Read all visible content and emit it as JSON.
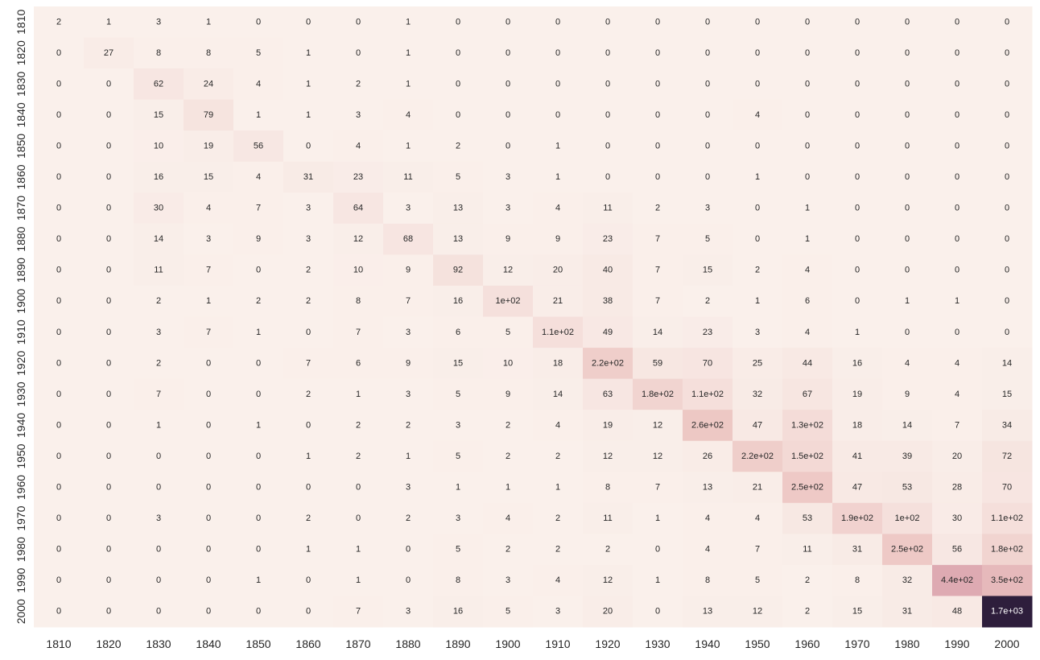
{
  "chart_data": {
    "type": "heatmap",
    "title": "",
    "xlabel": "",
    "ylabel": "",
    "x_categories": [
      "1810",
      "1820",
      "1830",
      "1840",
      "1850",
      "1860",
      "1870",
      "1880",
      "1890",
      "1900",
      "1910",
      "1920",
      "1930",
      "1940",
      "1950",
      "1960",
      "1970",
      "1980",
      "1990",
      "2000"
    ],
    "y_categories": [
      "1810",
      "1820",
      "1830",
      "1840",
      "1850",
      "1860",
      "1870",
      "1880",
      "1890",
      "1900",
      "1910",
      "1920",
      "1930",
      "1940",
      "1950",
      "1960",
      "1970",
      "1980",
      "1990",
      "2000"
    ],
    "values": [
      [
        2,
        1,
        3,
        1,
        0,
        0,
        0,
        1,
        0,
        0,
        0,
        0,
        0,
        0,
        0,
        0,
        0,
        0,
        0,
        0
      ],
      [
        0,
        27,
        8,
        8,
        5,
        1,
        0,
        1,
        0,
        0,
        0,
        0,
        0,
        0,
        0,
        0,
        0,
        0,
        0,
        0
      ],
      [
        0,
        0,
        62,
        24,
        4,
        1,
        2,
        1,
        0,
        0,
        0,
        0,
        0,
        0,
        0,
        0,
        0,
        0,
        0,
        0
      ],
      [
        0,
        0,
        15,
        79,
        1,
        1,
        3,
        4,
        0,
        0,
        0,
        0,
        0,
        0,
        4,
        0,
        0,
        0,
        0,
        0
      ],
      [
        0,
        0,
        10,
        19,
        56,
        0,
        4,
        1,
        2,
        0,
        1,
        0,
        0,
        0,
        0,
        0,
        0,
        0,
        0,
        0
      ],
      [
        0,
        0,
        16,
        15,
        4,
        31,
        23,
        11,
        5,
        3,
        1,
        0,
        0,
        0,
        1,
        0,
        0,
        0,
        0,
        0
      ],
      [
        0,
        0,
        30,
        4,
        7,
        3,
        64,
        3,
        13,
        3,
        4,
        11,
        2,
        3,
        0,
        1,
        0,
        0,
        0,
        0
      ],
      [
        0,
        0,
        14,
        3,
        9,
        3,
        12,
        68,
        13,
        9,
        9,
        23,
        7,
        5,
        0,
        1,
        0,
        0,
        0,
        0
      ],
      [
        0,
        0,
        11,
        7,
        0,
        2,
        10,
        9,
        92,
        12,
        20,
        40,
        7,
        15,
        2,
        4,
        0,
        0,
        0,
        0
      ],
      [
        0,
        0,
        2,
        1,
        2,
        2,
        8,
        7,
        16,
        100,
        21,
        38,
        7,
        2,
        1,
        6,
        0,
        1,
        1,
        0
      ],
      [
        0,
        0,
        3,
        7,
        1,
        0,
        7,
        3,
        6,
        5,
        110,
        49,
        14,
        23,
        3,
        4,
        1,
        0,
        0,
        0
      ],
      [
        0,
        0,
        2,
        0,
        0,
        7,
        6,
        9,
        15,
        10,
        18,
        220,
        59,
        70,
        25,
        44,
        16,
        4,
        4,
        14
      ],
      [
        0,
        0,
        7,
        0,
        0,
        2,
        1,
        3,
        5,
        9,
        14,
        63,
        180,
        110,
        32,
        67,
        19,
        9,
        4,
        15
      ],
      [
        0,
        0,
        1,
        0,
        1,
        0,
        2,
        2,
        3,
        2,
        4,
        19,
        12,
        260,
        47,
        130,
        18,
        14,
        7,
        34
      ],
      [
        0,
        0,
        0,
        0,
        0,
        1,
        2,
        1,
        5,
        2,
        2,
        12,
        12,
        26,
        220,
        150,
        41,
        39,
        20,
        72
      ],
      [
        0,
        0,
        0,
        0,
        0,
        0,
        0,
        3,
        1,
        1,
        1,
        8,
        7,
        13,
        21,
        250,
        47,
        53,
        28,
        70
      ],
      [
        0,
        0,
        3,
        0,
        0,
        2,
        0,
        2,
        3,
        4,
        2,
        11,
        1,
        4,
        4,
        53,
        190,
        100,
        30,
        110
      ],
      [
        0,
        0,
        0,
        0,
        0,
        1,
        1,
        0,
        5,
        2,
        2,
        2,
        0,
        4,
        7,
        11,
        31,
        250,
        56,
        180
      ],
      [
        0,
        0,
        0,
        0,
        1,
        0,
        1,
        0,
        8,
        3,
        4,
        12,
        1,
        8,
        5,
        2,
        8,
        32,
        440,
        350
      ],
      [
        0,
        0,
        0,
        0,
        0,
        0,
        7,
        3,
        16,
        5,
        3,
        20,
        0,
        13,
        12,
        2,
        15,
        31,
        48,
        1700
      ]
    ],
    "annotations": [
      [
        "2",
        "1",
        "3",
        "1",
        "0",
        "0",
        "0",
        "1",
        "0",
        "0",
        "0",
        "0",
        "0",
        "0",
        "0",
        "0",
        "0",
        "0",
        "0",
        "0"
      ],
      [
        "0",
        "27",
        "8",
        "8",
        "5",
        "1",
        "0",
        "1",
        "0",
        "0",
        "0",
        "0",
        "0",
        "0",
        "0",
        "0",
        "0",
        "0",
        "0",
        "0"
      ],
      [
        "0",
        "0",
        "62",
        "24",
        "4",
        "1",
        "2",
        "1",
        "0",
        "0",
        "0",
        "0",
        "0",
        "0",
        "0",
        "0",
        "0",
        "0",
        "0",
        "0"
      ],
      [
        "0",
        "0",
        "15",
        "79",
        "1",
        "1",
        "3",
        "4",
        "0",
        "0",
        "0",
        "0",
        "0",
        "0",
        "4",
        "0",
        "0",
        "0",
        "0",
        "0"
      ],
      [
        "0",
        "0",
        "10",
        "19",
        "56",
        "0",
        "4",
        "1",
        "2",
        "0",
        "1",
        "0",
        "0",
        "0",
        "0",
        "0",
        "0",
        "0",
        "0",
        "0"
      ],
      [
        "0",
        "0",
        "16",
        "15",
        "4",
        "31",
        "23",
        "11",
        "5",
        "3",
        "1",
        "0",
        "0",
        "0",
        "1",
        "0",
        "0",
        "0",
        "0",
        "0"
      ],
      [
        "0",
        "0",
        "30",
        "4",
        "7",
        "3",
        "64",
        "3",
        "13",
        "3",
        "4",
        "11",
        "2",
        "3",
        "0",
        "1",
        "0",
        "0",
        "0",
        "0"
      ],
      [
        "0",
        "0",
        "14",
        "3",
        "9",
        "3",
        "12",
        "68",
        "13",
        "9",
        "9",
        "23",
        "7",
        "5",
        "0",
        "1",
        "0",
        "0",
        "0",
        "0"
      ],
      [
        "0",
        "0",
        "11",
        "7",
        "0",
        "2",
        "10",
        "9",
        "92",
        "12",
        "20",
        "40",
        "7",
        "15",
        "2",
        "4",
        "0",
        "0",
        "0",
        "0"
      ],
      [
        "0",
        "0",
        "2",
        "1",
        "2",
        "2",
        "8",
        "7",
        "16",
        "1e+02",
        "21",
        "38",
        "7",
        "2",
        "1",
        "6",
        "0",
        "1",
        "1",
        "0"
      ],
      [
        "0",
        "0",
        "3",
        "7",
        "1",
        "0",
        "7",
        "3",
        "6",
        "5",
        "1.1e+02",
        "49",
        "14",
        "23",
        "3",
        "4",
        "1",
        "0",
        "0",
        "0"
      ],
      [
        "0",
        "0",
        "2",
        "0",
        "0",
        "7",
        "6",
        "9",
        "15",
        "10",
        "18",
        "2.2e+02",
        "59",
        "70",
        "25",
        "44",
        "16",
        "4",
        "4",
        "14"
      ],
      [
        "0",
        "0",
        "7",
        "0",
        "0",
        "2",
        "1",
        "3",
        "5",
        "9",
        "14",
        "63",
        "1.8e+02",
        "1.1e+02",
        "32",
        "67",
        "19",
        "9",
        "4",
        "15"
      ],
      [
        "0",
        "0",
        "1",
        "0",
        "1",
        "0",
        "2",
        "2",
        "3",
        "2",
        "4",
        "19",
        "12",
        "2.6e+02",
        "47",
        "1.3e+02",
        "18",
        "14",
        "7",
        "34"
      ],
      [
        "0",
        "0",
        "0",
        "0",
        "0",
        "1",
        "2",
        "1",
        "5",
        "2",
        "2",
        "12",
        "12",
        "26",
        "2.2e+02",
        "1.5e+02",
        "41",
        "39",
        "20",
        "72"
      ],
      [
        "0",
        "0",
        "0",
        "0",
        "0",
        "0",
        "0",
        "3",
        "1",
        "1",
        "1",
        "8",
        "7",
        "13",
        "21",
        "2.5e+02",
        "47",
        "53",
        "28",
        "70"
      ],
      [
        "0",
        "0",
        "3",
        "0",
        "0",
        "2",
        "0",
        "2",
        "3",
        "4",
        "2",
        "11",
        "1",
        "4",
        "4",
        "53",
        "1.9e+02",
        "1e+02",
        "30",
        "1.1e+02"
      ],
      [
        "0",
        "0",
        "0",
        "0",
        "0",
        "1",
        "1",
        "0",
        "5",
        "2",
        "2",
        "2",
        "0",
        "4",
        "7",
        "11",
        "31",
        "2.5e+02",
        "56",
        "1.8e+02"
      ],
      [
        "0",
        "0",
        "0",
        "0",
        "1",
        "0",
        "1",
        "0",
        "8",
        "3",
        "4",
        "12",
        "1",
        "8",
        "5",
        "2",
        "8",
        "32",
        "4.4e+02",
        "3.5e+02"
      ],
      [
        "0",
        "0",
        "0",
        "0",
        "0",
        "0",
        "7",
        "3",
        "16",
        "5",
        "3",
        "20",
        "0",
        "13",
        "12",
        "2",
        "15",
        "31",
        "48",
        "1.7e+03"
      ]
    ],
    "value_range": [
      0,
      1700
    ],
    "colormap": [
      "#faf0eb",
      "#ecc4c1",
      "#d395a6",
      "#ad6b92",
      "#7c4a80",
      "#4a2f61",
      "#2e1e3c"
    ],
    "grid": false,
    "legend": "none"
  }
}
